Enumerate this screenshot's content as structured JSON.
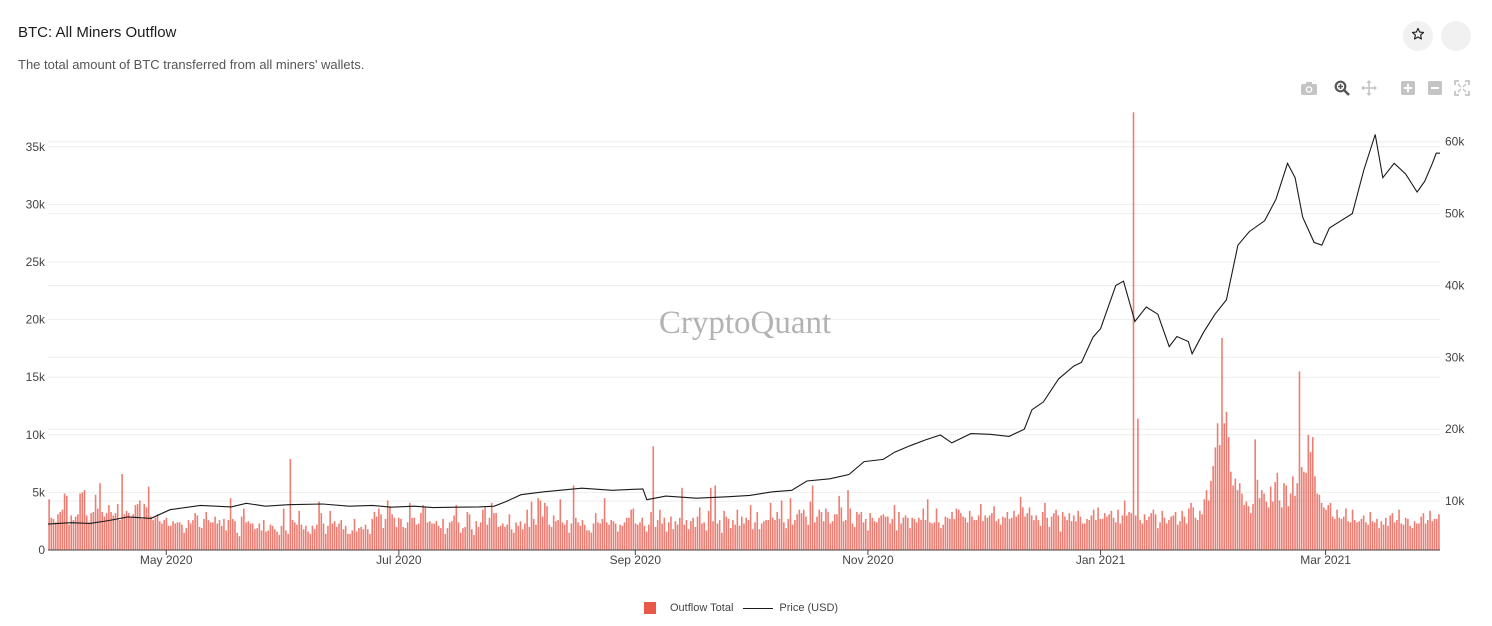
{
  "header": {
    "title": "BTC: All Miners Outflow",
    "subtitle": "The total amount of BTC transferred from all miners' wallets."
  },
  "actions": {
    "favorite_icon": "star-icon",
    "menu_icon": "circle-icon"
  },
  "toolbar": {
    "icons": [
      "camera-icon",
      "zoom-icon",
      "pan-icon",
      "zoom-in-icon",
      "zoom-out-icon",
      "autoscale-icon"
    ]
  },
  "watermark": "CryptoQuant",
  "legend": {
    "bar_label": "Outflow Total",
    "line_label": "Price (USD)"
  },
  "colors": {
    "bar": "#e8584a",
    "line": "#1a1a1a",
    "grid": "#eeeeee"
  },
  "chart_data": {
    "type": "bar",
    "x_ticks": [
      {
        "label": "May 2020",
        "day": 31
      },
      {
        "label": "Jul 2020",
        "day": 92
      },
      {
        "label": "Sep 2020",
        "day": 154
      },
      {
        "label": "Nov 2020",
        "day": 215
      },
      {
        "label": "Jan 2021",
        "day": 276
      },
      {
        "label": "Mar 2021",
        "day": 335
      }
    ],
    "y_left": {
      "ticks": [
        0,
        5000,
        10000,
        15000,
        20000,
        25000,
        30000,
        35000
      ],
      "labels": [
        "0",
        "5k",
        "10k",
        "15k",
        "20k",
        "25k",
        "30k",
        "35k"
      ],
      "range": [
        0,
        37500
      ]
    },
    "y_right": {
      "ticks": [
        10000,
        20000,
        30000,
        40000,
        50000,
        60000
      ],
      "labels": [
        "10k",
        "20k",
        "30k",
        "40k",
        "50k",
        "60k"
      ],
      "range": [
        3200,
        63300
      ]
    },
    "x_range_days": [
      0,
      365
    ],
    "series": [
      {
        "name": "Outflow Total",
        "type": "bar",
        "axis": "left",
        "values": [
          4400,
          2800,
          2700,
          2400,
          3100,
          3300,
          3500,
          4900,
          4700,
          2200,
          3000,
          2600,
          2900,
          3100,
          4900,
          5000,
          5200,
          3000,
          2400,
          3200,
          3300,
          4800,
          3600,
          5800,
          3300,
          2900,
          3200,
          3900,
          3300,
          3000,
          3200,
          4000,
          2600,
          6600,
          3100,
          3400,
          3200,
          2800,
          3100,
          3900,
          4000,
          4300,
          2700,
          4000,
          3700,
          5500,
          2900,
          2600,
          2800,
          3100,
          2500,
          2300,
          2600,
          2800,
          2100,
          2100,
          2500,
          2300,
          2400,
          2400,
          2200,
          1500,
          1900,
          2600,
          2300,
          2600,
          3200,
          3000,
          2000,
          1900,
          2700,
          3300,
          2600,
          2400,
          2400,
          2900,
          2300,
          2600,
          2100,
          2700,
          1700,
          2600,
          4500,
          2700,
          2500,
          1500,
          1200,
          2900,
          3600,
          2400,
          2500,
          2300,
          2300,
          1800,
          1900,
          2300,
          1700,
          2600,
          1600,
          1700,
          2200,
          2100,
          1800,
          1600,
          1300,
          2100,
          3600,
          1700,
          1400,
          7900,
          2600,
          2400,
          2200,
          3400,
          2200,
          1800,
          2100,
          1600,
          1400,
          2100,
          1800,
          2200,
          4200,
          3200,
          2300,
          1400,
          2100,
          3400,
          2300,
          2500,
          2000,
          2300,
          2600,
          1800,
          2100,
          1400,
          1400,
          1700,
          2700,
          1600,
          1900,
          2000,
          1800,
          2200,
          1800,
          1400,
          2700,
          3300,
          2900,
          3600,
          3100,
          1900,
          2700,
          4300,
          3800,
          3100,
          2800,
          2000,
          2800,
          2700,
          2000,
          1900,
          2400,
          4100,
          2800,
          2800,
          2200,
          2300,
          3200,
          3900,
          3700,
          2400,
          2500,
          2300,
          2300,
          2500,
          2100,
          1900,
          2700,
          1400,
          1900,
          2400,
          2500,
          3000,
          3900,
          2400,
          1500,
          1900,
          2000,
          3300,
          3100,
          1800,
          1300,
          2500,
          2000,
          2400,
          3500,
          3700,
          2200,
          2800,
          4100,
          3200,
          3200,
          2000,
          2100,
          2300,
          2000,
          2200,
          3100,
          1800,
          1500,
          2400,
          2100,
          2500,
          1800,
          2300,
          3500,
          2000,
          4200,
          2700,
          2200,
          4500,
          4300,
          2900,
          4100,
          3800,
          2200,
          2000,
          3000,
          2500,
          2600,
          4400,
          2400,
          2200,
          2600,
          1500,
          2300,
          5600,
          2800,
          2400,
          2100,
          2600,
          2200,
          1700,
          1700,
          1500,
          2300,
          3200,
          2400,
          2300,
          2700,
          4500,
          2400,
          2200,
          2600,
          2500,
          2300,
          1600,
          2200,
          2100,
          2400,
          2800,
          2800,
          3500,
          3600,
          2300,
          2200,
          2400,
          2800,
          2100,
          1600,
          2200,
          3300,
          9000,
          2000,
          2600,
          3500,
          2300,
          2800,
          1600,
          2400,
          2900,
          1800,
          2500,
          2200,
          2800,
          5400,
          2200,
          2600,
          1800,
          2500,
          2800,
          2000,
          2900,
          3700,
          2300,
          2400,
          1700,
          3400,
          5400,
          2500,
          5600,
          2300,
          2600,
          1500,
          3400,
          2900,
          2700,
          1900,
          2600,
          2200,
          3500,
          2100,
          2900,
          2300,
          2800,
          2600,
          3900,
          1800,
          2400,
          3300,
          1800,
          2300,
          2500,
          2600,
          2600,
          4100,
          2800,
          2600,
          3300,
          2700,
          4300,
          2400,
          1900,
          2700,
          4500,
          2200,
          2600,
          3100,
          3500,
          3200,
          3500,
          2900,
          2200,
          4200,
          5600,
          2400,
          2900,
          3500,
          3300,
          2500,
          3600,
          3300,
          2300,
          2500,
          3100,
          3100,
          4700,
          3700,
          2500,
          2600,
          5200,
          3600,
          2300,
          2000,
          3300,
          3100,
          3300,
          2400,
          2700,
          1700,
          3200,
          2800,
          2500,
          2400,
          2800,
          3000,
          3100,
          2900,
          2900,
          2300,
          2700,
          3900,
          1700,
          3300,
          2300,
          2800,
          3000,
          2800,
          1900,
          2800,
          2700,
          2400,
          2800,
          2600,
          3600,
          2600,
          4400,
          2400,
          2300,
          2400,
          3600,
          2400,
          1900,
          2200,
          2900,
          2800,
          2700,
          3300,
          2700,
          3600,
          3500,
          3200,
          2900,
          2800,
          2400,
          3400,
          2900,
          2600,
          2600,
          3000,
          4000,
          2500,
          3000,
          2800,
          3000,
          3200,
          3800,
          2500,
          2700,
          2200,
          2900,
          2800,
          3300,
          2700,
          2800,
          3400,
          2900,
          3100,
          4600,
          3700,
          2900,
          3200,
          3700,
          3000,
          2600,
          3000,
          2600,
          2100,
          3300,
          4100,
          2800,
          2000,
          2900,
          3200,
          3500,
          3000,
          1600,
          3300,
          2900,
          2600,
          3200,
          2500,
          3000,
          2500,
          3400,
          2900,
          2300,
          2300,
          2700,
          2600,
          3000,
          3500,
          2600,
          3700,
          2700,
          2700,
          3200,
          2900,
          3100,
          3400,
          2800,
          2400,
          3500,
          2300,
          3000,
          4300,
          3000,
          3300,
          3200,
          38000,
          3000,
          11400,
          2600,
          2300,
          3100,
          2600,
          2900,
          3200,
          3500,
          3100,
          1900,
          2400,
          3400,
          2800,
          2300,
          2600,
          2900,
          3000,
          3300,
          2200,
          2500,
          3400,
          2900,
          2300,
          3600,
          4100,
          3700,
          2800,
          2600,
          3400,
          3100,
          4400,
          5200,
          4300,
          6000,
          7300,
          8900,
          11000,
          9100,
          18400,
          11000,
          12000,
          9800,
          6800,
          5600,
          6200,
          5200,
          5800,
          4900,
          3900,
          4200,
          3800,
          3200,
          4000,
          9600,
          6100,
          4500,
          5200,
          4900,
          4200,
          3700,
          5500,
          4200,
          5900,
          6700,
          4300,
          3700,
          5800,
          5600,
          3800,
          4900,
          6400,
          4700,
          5800,
          15500,
          7200,
          6800,
          6700,
          10000,
          8500,
          9800,
          6400,
          4900,
          4800,
          4100,
          3700,
          3500,
          3900,
          4100,
          2900,
          2700,
          3500,
          2800,
          2700,
          2900,
          3600,
          2500,
          2400,
          3500,
          2600,
          2400,
          2500,
          2700,
          3000,
          2400,
          2200,
          3300,
          2500,
          2400,
          2700,
          1900,
          2500,
          2200,
          2800,
          2100,
          3000,
          3200,
          2400,
          2600,
          3500,
          2300,
          2200,
          2800,
          2700,
          2100,
          1900,
          2500,
          2300,
          2300,
          2900,
          3200,
          2300,
          2600,
          3400,
          2500,
          2700,
          2700,
          3100
        ]
      },
      {
        "name": "Price (USD)",
        "type": "line",
        "axis": "right",
        "points": [
          [
            0,
            6800
          ],
          [
            6,
            7000
          ],
          [
            11,
            6900
          ],
          [
            16,
            7300
          ],
          [
            21,
            7800
          ],
          [
            27,
            7600
          ],
          [
            32,
            8800
          ],
          [
            40,
            9400
          ],
          [
            48,
            9200
          ],
          [
            52,
            9700
          ],
          [
            57,
            9300
          ],
          [
            63,
            9500
          ],
          [
            72,
            9600
          ],
          [
            79,
            9300
          ],
          [
            85,
            9400
          ],
          [
            90,
            9150
          ],
          [
            96,
            9300
          ],
          [
            101,
            9100
          ],
          [
            107,
            9150
          ],
          [
            113,
            9200
          ],
          [
            117,
            9300
          ],
          [
            120,
            9900
          ],
          [
            124,
            10900
          ],
          [
            130,
            11300
          ],
          [
            140,
            11800
          ],
          [
            148,
            11500
          ],
          [
            156,
            11700
          ],
          [
            157,
            10200
          ],
          [
            162,
            10700
          ],
          [
            170,
            10400
          ],
          [
            178,
            10600
          ],
          [
            184,
            10800
          ],
          [
            190,
            11300
          ],
          [
            195,
            11500
          ],
          [
            199,
            12800
          ],
          [
            205,
            13100
          ],
          [
            210,
            13700
          ],
          [
            214,
            15500
          ],
          [
            219,
            15800
          ],
          [
            222,
            16800
          ],
          [
            226,
            17700
          ],
          [
            230,
            18500
          ],
          [
            234,
            19200
          ],
          [
            237,
            18100
          ],
          [
            242,
            19400
          ],
          [
            247,
            19300
          ],
          [
            252,
            19000
          ],
          [
            256,
            20000
          ],
          [
            258,
            22700
          ],
          [
            261,
            23800
          ],
          [
            265,
            27000
          ],
          [
            269,
            28800
          ],
          [
            271,
            29300
          ],
          [
            274,
            32800
          ],
          [
            276,
            34000
          ],
          [
            280,
            40000
          ],
          [
            282,
            40600
          ],
          [
            285,
            35000
          ],
          [
            288,
            37000
          ],
          [
            291,
            36000
          ],
          [
            294,
            31500
          ],
          [
            296,
            32900
          ],
          [
            299,
            32200
          ],
          [
            300,
            30500
          ],
          [
            303,
            33500
          ],
          [
            306,
            36000
          ],
          [
            309,
            38000
          ],
          [
            312,
            45600
          ],
          [
            315,
            47500
          ],
          [
            319,
            49000
          ],
          [
            322,
            52000
          ],
          [
            325,
            57000
          ],
          [
            327,
            55000
          ],
          [
            329,
            49500
          ],
          [
            332,
            46000
          ],
          [
            334,
            45600
          ],
          [
            336,
            48000
          ],
          [
            339,
            49000
          ],
          [
            342,
            50000
          ],
          [
            345,
            56000
          ],
          [
            348,
            61000
          ],
          [
            350,
            55000
          ],
          [
            353,
            57000
          ],
          [
            356,
            55500
          ],
          [
            359,
            53000
          ],
          [
            361,
            54500
          ],
          [
            363,
            57000
          ],
          [
            364,
            58400
          ],
          [
            365,
            58400
          ]
        ]
      }
    ]
  }
}
